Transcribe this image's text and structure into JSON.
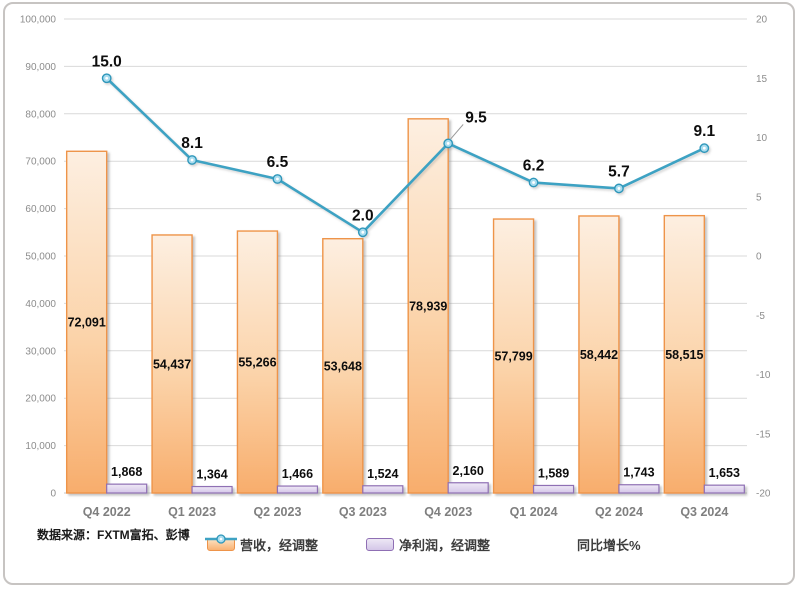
{
  "source_note": "数据来源：FXTM富拓、彭博",
  "legend": {
    "items": [
      {
        "label": "营收，经调整",
        "type": "bar",
        "fill_top": "#FDE3C4",
        "fill_bottom": "#F9B273",
        "border": "#EE944A"
      },
      {
        "label": "净利润，经调整",
        "type": "bar",
        "fill_top": "#EDE7F5",
        "fill_bottom": "#D4C6E8",
        "border": "#8F6FB4"
      },
      {
        "label": "同比增长%",
        "type": "line",
        "color": "#3EA2C3"
      }
    ]
  },
  "chart_data": {
    "type": "combo-bar-line",
    "categories": [
      "Q4 2022",
      "Q1 2023",
      "Q2 2023",
      "Q3 2023",
      "Q4 2023",
      "Q1 2024",
      "Q2 2024",
      "Q3 2024"
    ],
    "series": [
      {
        "name": "营收，经调整",
        "type": "bar",
        "axis": "left",
        "values": [
          72091,
          54437,
          55266,
          53648,
          78939,
          57799,
          58442,
          58515
        ]
      },
      {
        "name": "净利润，经调整",
        "type": "bar",
        "axis": "left",
        "values": [
          1868,
          1364,
          1466,
          1524,
          2160,
          1589,
          1743,
          1653
        ]
      },
      {
        "name": "同比增长%",
        "type": "line",
        "axis": "right",
        "values": [
          15.0,
          8.1,
          6.5,
          2.0,
          9.5,
          6.2,
          5.7,
          9.1
        ],
        "callout_labels": [
          4
        ]
      }
    ],
    "left_axis": {
      "min": 0,
      "max": 100000,
      "step": 10000
    },
    "right_axis": {
      "min": -20,
      "max": 20,
      "step": 5
    },
    "grid": "horizontal",
    "legend_position": "bottom",
    "colors": {
      "bar1_top": "#FDEFE1",
      "bar1_mid": "#FBD3A9",
      "bar1_bottom": "#F8AD6C",
      "bar1_border": "#EE944A",
      "bar2_top": "#EFE9F6",
      "bar2_bottom": "#D4C6E8",
      "bar2_border": "#8F6FB4",
      "line": "#3EA2C3",
      "marker_fill": "#A8DCEF",
      "marker_border": "#2E97BA",
      "gridline": "#D9D9D9",
      "axis_text": "#8C8C8C",
      "category_text": "#7F7F7F",
      "data_label": "#0D0D0D",
      "leader": "#999999"
    }
  }
}
